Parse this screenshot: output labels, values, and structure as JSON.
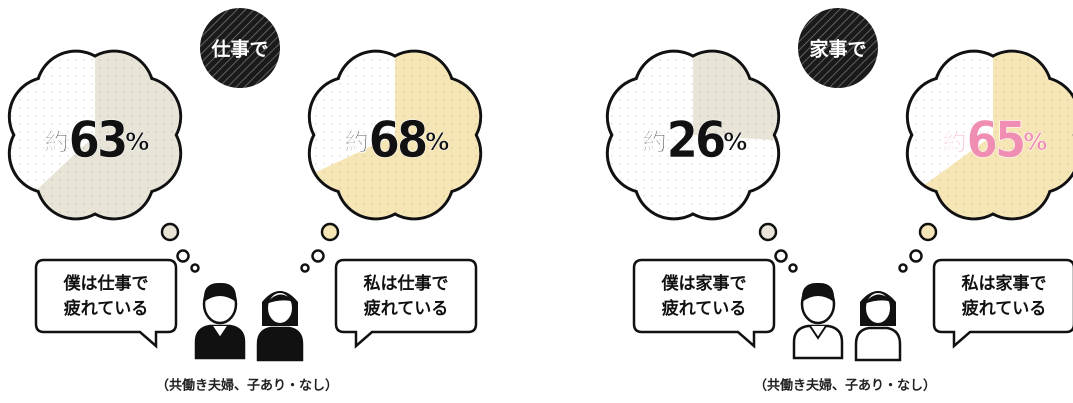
{
  "panels": [
    {
      "badge": "仕事で",
      "bubbles": [
        {
          "prefix": "約",
          "value": 63,
          "unit": "%",
          "color": "#e8e5d8",
          "text_color": "#111111"
        },
        {
          "prefix": "約",
          "value": 68,
          "unit": "%",
          "color": "#f7e6b5",
          "text_color": "#111111"
        }
      ],
      "speech": [
        [
          "僕は仕事で",
          "疲れている"
        ],
        [
          "私は仕事で",
          "疲れている"
        ]
      ],
      "caption": "（共働き夫婦、子あり・なし）"
    },
    {
      "badge": "家事で",
      "bubbles": [
        {
          "prefix": "約",
          "value": 26,
          "unit": "%",
          "color": "#e8e5d8",
          "text_color": "#111111"
        },
        {
          "prefix": "約",
          "value": 65,
          "unit": "%",
          "color": "#f7e6b5",
          "text_color": "#f08db2"
        }
      ],
      "speech": [
        [
          "僕は家事で",
          "疲れている"
        ],
        [
          "私は家事で",
          "疲れている"
        ]
      ],
      "caption": "（共働き夫婦、子あり・なし）"
    }
  ]
}
